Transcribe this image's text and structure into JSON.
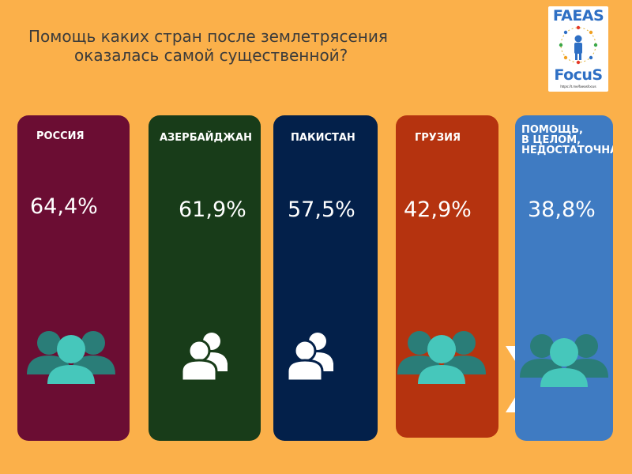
{
  "title_line1": "Помощь каких стран после землетрясения",
  "title_line2": "оказалась самой существенной?",
  "logo": {
    "top_text": "FAEAS",
    "bottom_text": "FocuS",
    "url": "https://t.me/faeasfocus"
  },
  "chart_data": {
    "type": "bar",
    "categories": [
      "РОССИЯ",
      "АЗЕРБАЙДЖАН",
      "ПАКИСТАН",
      "ГРУЗИЯ",
      "ПОМОЩЬ,\nВ ЦЕЛОМ,\nНЕДОСТАТОЧНА"
    ],
    "values": [
      64.4,
      61.9,
      57.5,
      42.9,
      38.8
    ],
    "value_labels": [
      "64,4%",
      "61,9%",
      "57,5%",
      "42,9%",
      "38,8%"
    ],
    "unit": "%",
    "title": "Помощь каких стран после землетрясения оказалась самой существенной?",
    "colors": [
      "#6b0d33",
      "#183c19",
      "#03204a",
      "#b5330f",
      "#3f7bc2"
    ],
    "icons": [
      "group-three-icon",
      "people-pair-icon",
      "people-pair-icon",
      "group-three-icon",
      "group-three-icon"
    ]
  }
}
